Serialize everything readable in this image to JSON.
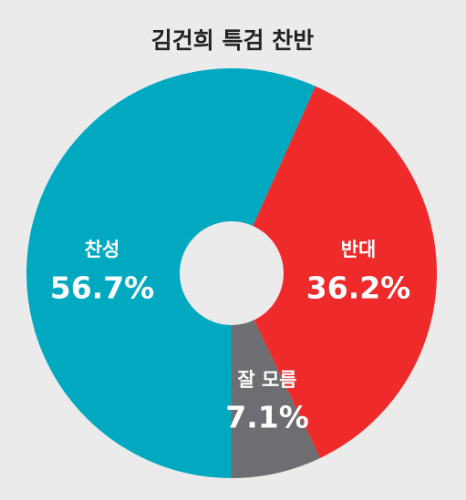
{
  "chart_data": {
    "type": "donut",
    "title": "김건희 특검 찬반",
    "categories": [
      "찬성",
      "반대",
      "잘 모름"
    ],
    "values": [
      56.7,
      36.2,
      7.1
    ],
    "value_labels": [
      "56.7%",
      "36.2%",
      "7.1%"
    ],
    "colors": [
      "#00a9c0",
      "#ee2a2b",
      "#6d6e71"
    ]
  }
}
